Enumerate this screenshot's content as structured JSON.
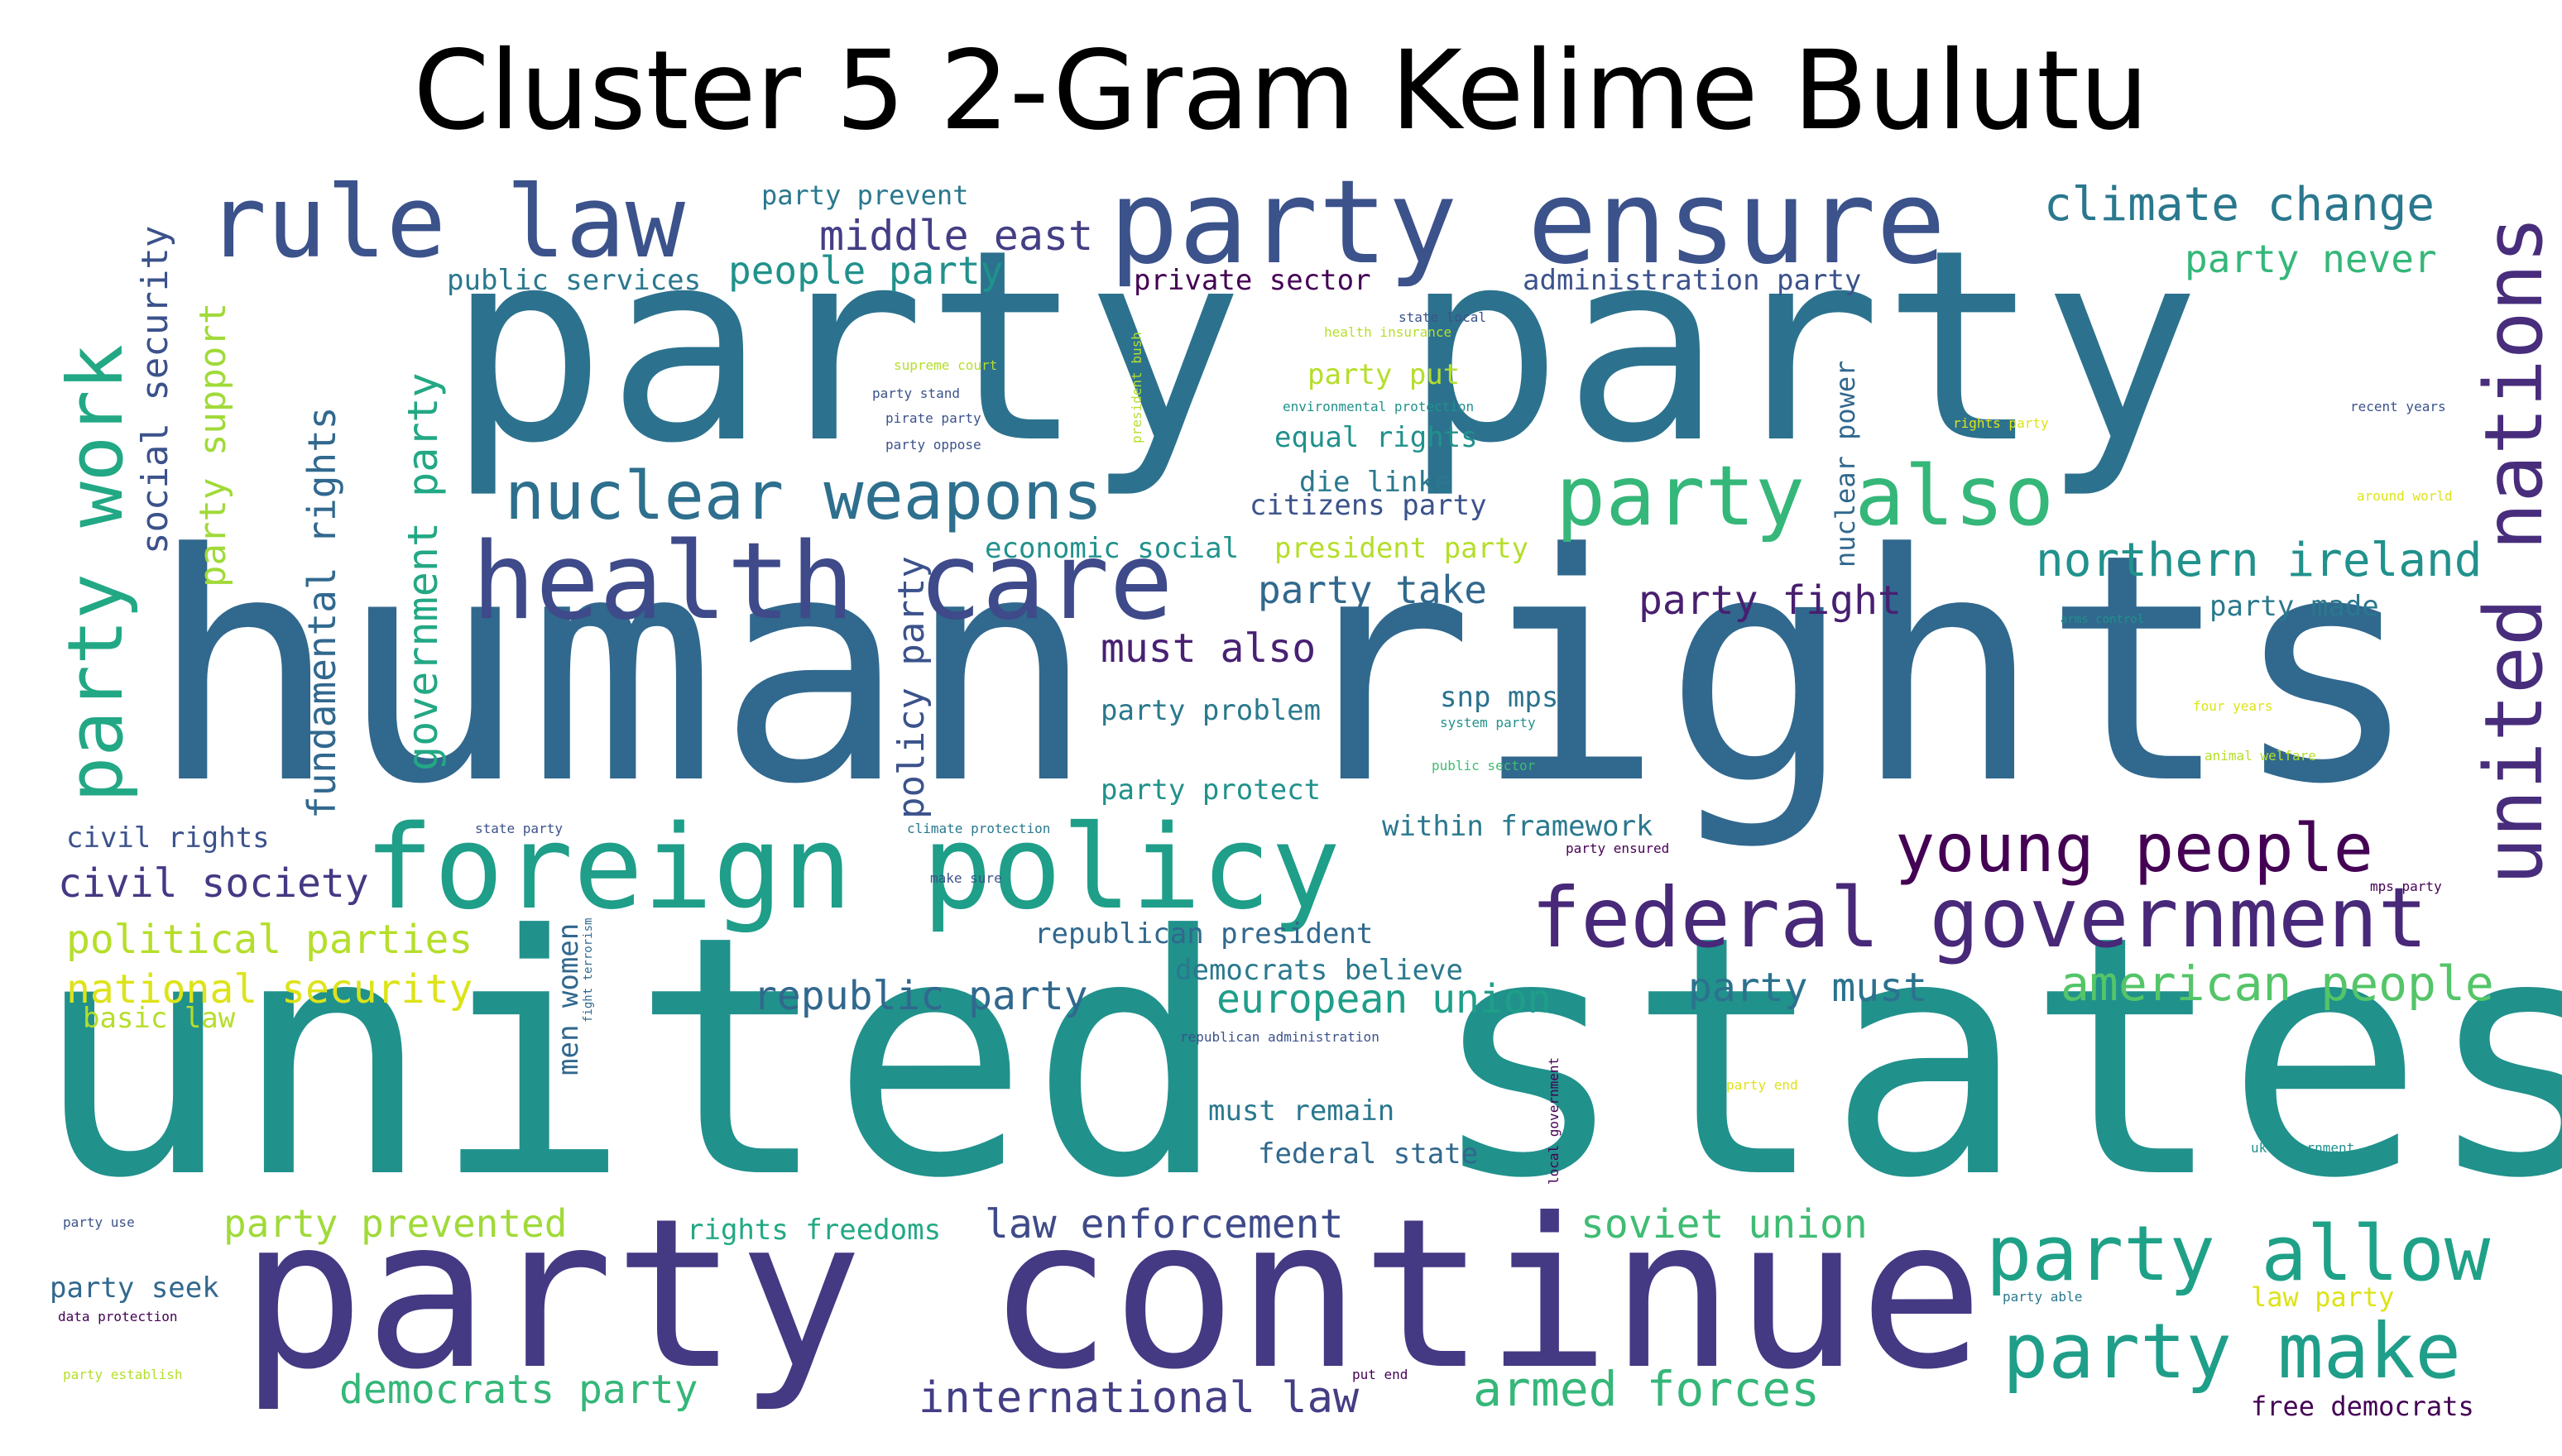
{
  "title": "Cluster 5 2-Gram Kelime Bulutu",
  "palette": {
    "deep_purple": "#440154",
    "indigo": "#3b528b",
    "slate_blue": "#433e85",
    "teal_blue": "#31688e",
    "teal": "#21918c",
    "green_teal": "#1f9e89",
    "green": "#35b779",
    "light_green": "#6ece58",
    "yellow_green": "#b5de2b",
    "yellow": "#fde725"
  },
  "words": {
    "human_rights": "human rights",
    "united_states": "united states",
    "party_party": "party party",
    "party_continue": "party continue",
    "party_ensure": "party ensure",
    "rule_law": "rule law",
    "health_care": "health care",
    "foreign_policy": "foreign policy",
    "federal_government": "federal government",
    "party_also": "party also",
    "united_nations": "united nations",
    "nuclear_weapons": "nuclear weapons",
    "party_work": "party work",
    "young_people": "young people",
    "party_allow": "party allow",
    "party_make": "party make",
    "climate_change": "climate change",
    "northern_ireland": "northern ireland",
    "american_people": "american people",
    "armed_forces": "armed forces",
    "international_law": "international law",
    "law_enforcement": "law enforcement",
    "soviet_union": "soviet union",
    "european_union": "european union",
    "republic_party": "republic party",
    "party_must": "party must",
    "democrats_party": "democrats party",
    "political_parties": "political parties",
    "national_security": "national security",
    "civil_society": "civil society",
    "party_prevented": "party prevented",
    "party_fight": "party fight",
    "must_also": "must also",
    "party_take": "party take",
    "government_party": "government party",
    "fundamental_rights": "fundamental rights",
    "social_security": "social security",
    "party_support": "party support",
    "policy_party": "policy party",
    "middle_east": "middle east",
    "people_party": "people party",
    "party_never": "party never",
    "party_prevent": "party prevent",
    "public_services": "public services",
    "private_sector": "private sector",
    "administration_party": "administration party",
    "party_put": "party put",
    "equal_rights": "equal rights",
    "die_linke": "die linke",
    "citizens_party": "citizens party",
    "economic_social": "economic social",
    "president_party": "president party",
    "nuclear_power": "nuclear power",
    "party_made": "party made",
    "party_problem": "party problem",
    "snp_mps": "snp mps",
    "party_protect": "party protect",
    "within_framework": "within framework",
    "civil_rights": "civil rights",
    "republican_president": "republican president",
    "democrats_believe": "democrats believe",
    "basic_law": "basic law",
    "men_women": "men women",
    "must_remain": "must remain",
    "federal_state": "federal state",
    "rights_freedoms": "rights freedoms",
    "party_seek": "party seek",
    "free_democrats": "free democrats",
    "law_party": "law party",
    "state_local": "state local",
    "health_insurance": "health insurance",
    "supreme_court": "supreme court",
    "party_stand": "party stand",
    "pirate_party": "pirate party",
    "party_oppose": "party oppose",
    "president_bush": "president bush",
    "environmental_protection": "environmental protection",
    "rights_party": "rights party",
    "recent_years": "recent years",
    "around_world": "around world",
    "arms_control": "arms control",
    "system_party": "system party",
    "public_sector": "public sector",
    "four_years": "four years",
    "animal_welfare": "animal welfare",
    "state_party": "state party",
    "climate_protection": "climate protection",
    "party_ensured": "party ensured",
    "make_sure": "make sure",
    "mps_party": "mps party",
    "fight_terrorism": "fight terrorism",
    "republican_administration": "republican administration",
    "local_government": "local government",
    "party_end": "party end",
    "uk_government": "uk government",
    "party_use": "party use",
    "party_able": "party able",
    "data_protection": "data protection",
    "party_establish": "party establish",
    "put_end": "put end"
  }
}
